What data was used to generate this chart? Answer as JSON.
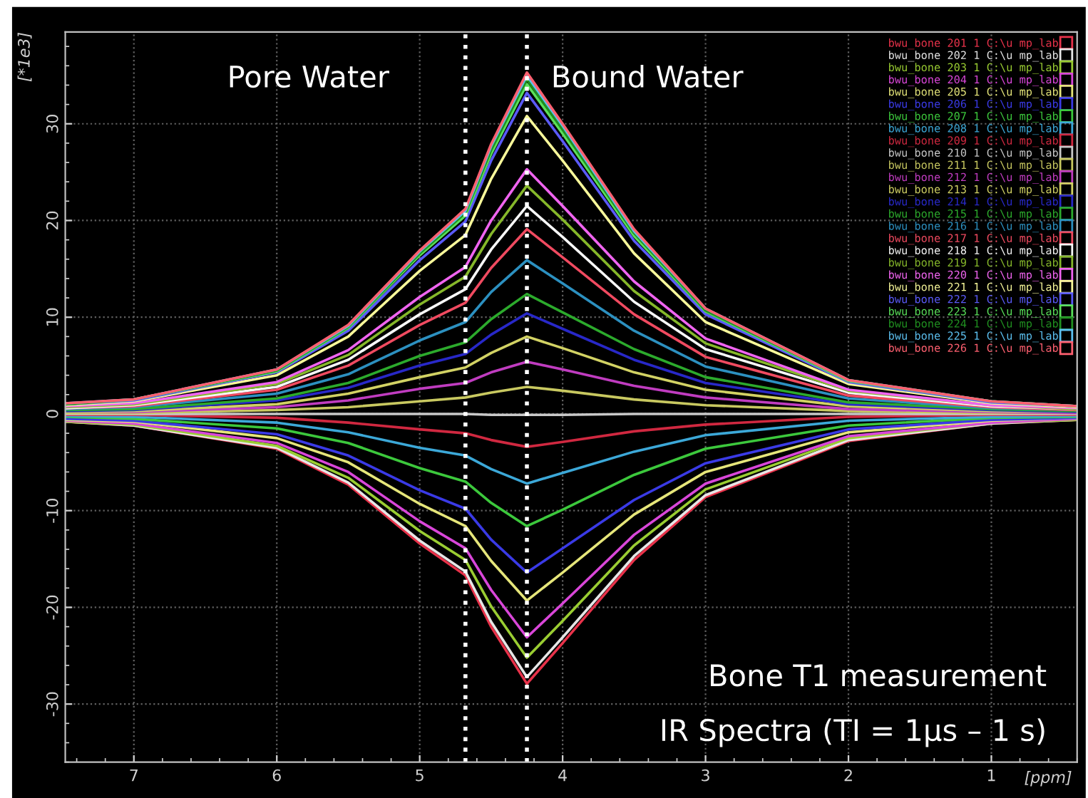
{
  "chart_data": {
    "type": "line",
    "x": [
      7.48,
      7,
      6,
      5.5,
      5,
      4.68,
      4.5,
      4.25,
      4,
      3.5,
      3,
      2,
      1,
      0.4
    ],
    "xlim": [
      7.48,
      0.4
    ],
    "xticks": [
      7,
      6,
      5,
      4,
      3,
      2,
      1
    ],
    "xlabel": "[ppm]",
    "ylim": [
      -36,
      39.5
    ],
    "yticks": [
      -30,
      -20,
      -10,
      0,
      10,
      20,
      30
    ],
    "ylabel": "[*1e3]",
    "grid": true,
    "legend": "top right",
    "marker": "none",
    "line_style": "solid",
    "ref_lines": [
      {
        "axis": "x",
        "value": 4.68,
        "color": "#ffffff",
        "line_style": "dotted"
      },
      {
        "axis": "x",
        "value": 4.25,
        "color": "#ffffff",
        "line_style": "dotted"
      }
    ],
    "annotations": [
      "Pore Water",
      "Bound Water",
      "Bone T1 measurement",
      "IR Spectra (TI = 1μs – 1 s)"
    ],
    "series": [
      {
        "name": "bwu_bone 201 1 C:\\u mp_lab",
        "color": "#e8324a",
        "values": [
          -0.8,
          -1.2,
          -3.6,
          -7.3,
          -13.4,
          -16.7,
          -22.0,
          -27.9,
          -23.7,
          -15.1,
          -8.6,
          -2.8,
          -1.0,
          -0.6
        ]
      },
      {
        "name": "bwu_bone 202 1 C:\\u mp_lab",
        "color": "#e6e6e6",
        "values": [
          -0.8,
          -1.2,
          -3.5,
          -7.1,
          -13.1,
          -16.3,
          -21.5,
          -27.2,
          -23.1,
          -14.7,
          -8.4,
          -2.7,
          -1.0,
          -0.6
        ]
      },
      {
        "name": "bwu_bone 203 1 C:\\u mp_lab",
        "color": "#9acd32",
        "values": [
          -0.8,
          -1.1,
          -3.3,
          -6.6,
          -12.1,
          -15.1,
          -19.9,
          -25.2,
          -21.4,
          -13.6,
          -7.8,
          -2.5,
          -0.9,
          -0.6
        ]
      },
      {
        "name": "bwu_bone 204 1 C:\\u mp_lab",
        "color": "#d946d9",
        "values": [
          -0.7,
          -1.0,
          -3.0,
          -6.0,
          -11.1,
          -13.9,
          -18.2,
          -23.1,
          -19.6,
          -12.5,
          -7.2,
          -2.3,
          -0.9,
          -0.5
        ]
      },
      {
        "name": "bwu_bone 205 1 C:\\u mp_lab",
        "color": "#e6e67a",
        "values": [
          -0.6,
          -0.8,
          -2.5,
          -5.0,
          -9.3,
          -11.6,
          -15.2,
          -19.3,
          -16.4,
          -10.4,
          -6.0,
          -1.9,
          -0.7,
          -0.4
        ]
      },
      {
        "name": "bwu_bone 206 1 C:\\u mp_lab",
        "color": "#3a3ae6",
        "values": [
          -0.5,
          -0.7,
          -2.1,
          -4.3,
          -7.9,
          -9.8,
          -13.0,
          -16.4,
          -13.9,
          -8.9,
          -5.1,
          -1.6,
          -0.6,
          -0.4
        ]
      },
      {
        "name": "bwu_bone 207 1 C:\\u mp_lab",
        "color": "#3cc83c",
        "values": [
          -0.3,
          -0.5,
          -1.5,
          -3.0,
          -5.6,
          -7.0,
          -9.2,
          -11.6,
          -9.9,
          -6.3,
          -3.6,
          -1.2,
          -0.4,
          -0.3
        ]
      },
      {
        "name": "bwu_bone 208 1 C:\\u mp_lab",
        "color": "#3ca8d8",
        "values": [
          -0.2,
          -0.3,
          -0.9,
          -1.9,
          -3.5,
          -4.3,
          -5.7,
          -7.2,
          -6.1,
          -3.9,
          -2.2,
          -0.7,
          -0.3,
          -0.2
        ]
      },
      {
        "name": "bwu_bone 209 1 C:\\u mp_lab",
        "color": "#d02840",
        "values": [
          -0.1,
          -0.1,
          -0.4,
          -0.9,
          -1.6,
          -2.0,
          -2.7,
          -3.4,
          -2.9,
          -1.8,
          -1.1,
          -0.3,
          -0.1,
          -0.1
        ]
      },
      {
        "name": "bwu_bone 210 1 C:\\u mp_lab",
        "color": "#c8c8c8",
        "values": [
          0,
          0,
          0,
          0,
          0,
          0,
          -0.1,
          -0.1,
          -0.1,
          0,
          0,
          0,
          0,
          0
        ]
      },
      {
        "name": "bwu_bone 211 1 C:\\u mp_lab",
        "color": "#c8c860",
        "values": [
          0.1,
          0.1,
          0.4,
          0.7,
          1.3,
          1.7,
          2.2,
          2.8,
          2.4,
          1.5,
          0.9,
          0.3,
          0.1,
          0.1
        ]
      },
      {
        "name": "bwu_bone 212 1 C:\\u mp_lab",
        "color": "#c03cc0",
        "values": [
          0.2,
          0.2,
          0.7,
          1.4,
          2.6,
          3.2,
          4.3,
          5.4,
          4.6,
          2.9,
          1.7,
          0.5,
          0.2,
          0.1
        ]
      },
      {
        "name": "bwu_bone 213 1 C:\\u mp_lab",
        "color": "#d2d264",
        "values": [
          0.2,
          0.3,
          1.0,
          2.1,
          3.8,
          4.8,
          6.3,
          8.0,
          6.8,
          4.3,
          2.5,
          0.8,
          0.3,
          0.2
        ]
      },
      {
        "name": "bwu_bone 214 1 C:\\u mp_lab",
        "color": "#2828c8",
        "values": [
          0.3,
          0.4,
          1.4,
          2.7,
          5.0,
          6.2,
          8.2,
          10.4,
          8.8,
          5.6,
          3.2,
          1.0,
          0.4,
          0.2
        ]
      },
      {
        "name": "bwu_bone 215 1 C:\\u mp_lab",
        "color": "#2caa2c",
        "values": [
          0.4,
          0.5,
          1.6,
          3.2,
          6.0,
          7.4,
          9.8,
          12.4,
          10.5,
          6.7,
          3.8,
          1.2,
          0.5,
          0.3
        ]
      },
      {
        "name": "bwu_bone 216 1 C:\\u mp_lab",
        "color": "#2c90c0",
        "values": [
          0.5,
          0.7,
          2.1,
          4.1,
          7.6,
          9.5,
          12.6,
          15.9,
          13.5,
          8.6,
          4.9,
          1.6,
          0.6,
          0.4
        ]
      },
      {
        "name": "bwu_bone 217 1 C:\\u mp_lab",
        "color": "#f04a60",
        "values": [
          0.6,
          0.8,
          2.5,
          5.0,
          9.2,
          11.5,
          15.1,
          19.1,
          16.2,
          10.3,
          5.9,
          1.9,
          0.7,
          0.4
        ]
      },
      {
        "name": "bwu_bone 218 1 C:\\u mp_lab",
        "color": "#f8f8f8",
        "values": [
          0.6,
          0.9,
          2.8,
          5.6,
          10.3,
          12.9,
          17.0,
          21.5,
          18.3,
          11.6,
          6.7,
          2.2,
          0.8,
          0.5
        ]
      },
      {
        "name": "bwu_bone 219 1 C:\\u mp_lab",
        "color": "#86b82a",
        "values": [
          0.7,
          1.0,
          3.1,
          6.1,
          11.3,
          14.2,
          18.6,
          23.6,
          20.1,
          12.7,
          7.3,
          2.4,
          0.9,
          0.5
        ]
      },
      {
        "name": "bwu_bone 220 1 C:\\u mp_lab",
        "color": "#f064f0",
        "values": [
          0.8,
          1.1,
          3.3,
          6.6,
          12.1,
          15.2,
          20.0,
          25.3,
          21.5,
          13.7,
          7.8,
          2.5,
          0.9,
          0.6
        ]
      },
      {
        "name": "bwu_bone 221 1 C:\\u mp_lab",
        "color": "#f8f89a",
        "values": [
          0.9,
          1.3,
          4.0,
          8.0,
          14.8,
          18.5,
          24.3,
          30.8,
          26.2,
          16.6,
          9.5,
          3.1,
          1.1,
          0.7
        ]
      },
      {
        "name": "bwu_bone 222 1 C:\\u mp_lab",
        "color": "#5a5af8",
        "values": [
          1.0,
          1.4,
          4.3,
          8.6,
          15.9,
          19.9,
          26.2,
          33.2,
          28.2,
          17.9,
          10.3,
          3.3,
          1.2,
          0.8
        ]
      },
      {
        "name": "bwu_bone 223 1 C:\\u mp_lab",
        "color": "#5ae05a",
        "values": [
          1.0,
          1.5,
          4.4,
          8.9,
          16.4,
          20.5,
          26.9,
          34.1,
          29.0,
          18.4,
          10.6,
          3.4,
          1.3,
          0.8
        ]
      },
      {
        "name": "bwu_bone 224 1 C:\\u mp_lab",
        "color": "#209020",
        "values": [
          1.0,
          1.5,
          4.5,
          9.0,
          16.6,
          20.8,
          27.3,
          34.6,
          29.4,
          18.7,
          10.7,
          3.5,
          1.3,
          0.8
        ]
      },
      {
        "name": "bwu_bone 225 1 C:\\u mp_lab",
        "color": "#5cc0f0",
        "values": [
          1.1,
          1.5,
          4.6,
          9.1,
          16.8,
          21.0,
          27.7,
          35.0,
          29.8,
          18.9,
          10.9,
          3.5,
          1.3,
          0.8
        ]
      },
      {
        "name": "bwu_bone 226 1 C:\\u mp_lab",
        "color": "#ff6070",
        "values": [
          1.1,
          1.5,
          4.6,
          9.2,
          16.9,
          21.2,
          27.9,
          35.3,
          30.0,
          19.1,
          10.9,
          3.5,
          1.3,
          0.8
        ]
      }
    ]
  }
}
